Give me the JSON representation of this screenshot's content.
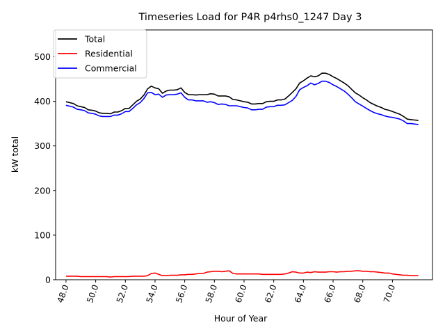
{
  "chart_data": {
    "type": "line",
    "title": "Timeseries Load for P4R p4rhs0_1247  Day 3",
    "xlabel": "Hour of Year",
    "ylabel": "kW total",
    "xlim": [
      47.3,
      72.7
    ],
    "ylim": [
      0,
      560
    ],
    "xticks": [
      48,
      50,
      52,
      54,
      56,
      58,
      60,
      62,
      64,
      66,
      68,
      70
    ],
    "xtick_labels": [
      "48.0",
      "50.0",
      "52.0",
      "54.0",
      "56.0",
      "58.0",
      "60.0",
      "62.0",
      "64.0",
      "66.0",
      "68.0",
      "70.0"
    ],
    "yticks": [
      0,
      100,
      200,
      300,
      400,
      500
    ],
    "ytick_labels": [
      "0",
      "100",
      "200",
      "300",
      "400",
      "500"
    ],
    "grid": false,
    "legend_position": "top-left",
    "x": [
      48.0,
      48.25,
      48.5,
      48.75,
      49.0,
      49.25,
      49.5,
      49.75,
      50.0,
      50.25,
      50.5,
      50.75,
      51.0,
      51.25,
      51.5,
      51.75,
      52.0,
      52.25,
      52.5,
      52.75,
      53.0,
      53.25,
      53.5,
      53.75,
      54.0,
      54.25,
      54.5,
      54.75,
      55.0,
      55.25,
      55.5,
      55.75,
      56.0,
      56.25,
      56.5,
      56.75,
      57.0,
      57.25,
      57.5,
      57.75,
      58.0,
      58.25,
      58.5,
      58.75,
      59.0,
      59.25,
      59.5,
      59.75,
      60.0,
      60.25,
      60.5,
      60.75,
      61.0,
      61.25,
      61.5,
      61.75,
      62.0,
      62.25,
      62.5,
      62.75,
      63.0,
      63.25,
      63.5,
      63.75,
      64.0,
      64.25,
      64.5,
      64.75,
      65.0,
      65.25,
      65.5,
      65.75,
      66.0,
      66.25,
      66.5,
      66.75,
      67.0,
      67.25,
      67.5,
      67.75,
      68.0,
      68.25,
      68.5,
      68.75,
      69.0,
      69.25,
      69.5,
      69.75,
      70.0,
      70.25,
      70.5,
      70.75,
      71.0,
      71.25,
      71.5,
      71.75
    ],
    "series": [
      {
        "name": "Total",
        "color": "#000000",
        "values": [
          399,
          397,
          395,
          390,
          388,
          386,
          381,
          380,
          378,
          374,
          373,
          373,
          372,
          376,
          376,
          379,
          384,
          384,
          392,
          400,
          405,
          414,
          428,
          434,
          430,
          428,
          418,
          423,
          425,
          425,
          426,
          430,
          420,
          415,
          415,
          414,
          415,
          415,
          415,
          417,
          416,
          412,
          412,
          412,
          410,
          404,
          403,
          401,
          399,
          398,
          394,
          394,
          395,
          395,
          399,
          400,
          400,
          403,
          403,
          405,
          412,
          420,
          428,
          441,
          446,
          452,
          457,
          455,
          457,
          463,
          463,
          460,
          455,
          451,
          446,
          441,
          435,
          427,
          419,
          414,
          408,
          403,
          397,
          393,
          389,
          386,
          382,
          380,
          377,
          374,
          371,
          366,
          360,
          359,
          358,
          357
        ]
      },
      {
        "name": "Residential",
        "color": "#ff0000",
        "values": [
          8,
          8,
          8,
          8,
          7,
          7,
          7,
          7,
          7,
          7,
          7,
          7,
          6,
          7,
          7,
          7,
          7,
          7,
          8,
          8,
          8,
          8,
          9,
          14,
          15,
          12,
          9,
          9,
          10,
          10,
          10,
          11,
          11,
          12,
          12,
          13,
          14,
          14,
          17,
          18,
          19,
          19,
          18,
          19,
          20,
          14,
          13,
          13,
          13,
          13,
          13,
          13,
          13,
          12,
          12,
          12,
          12,
          12,
          12,
          13,
          15,
          18,
          17,
          15,
          15,
          17,
          16,
          18,
          17,
          17,
          17,
          18,
          18,
          17,
          18,
          18,
          19,
          19,
          20,
          20,
          19,
          19,
          18,
          18,
          17,
          16,
          15,
          15,
          13,
          12,
          11,
          10,
          10,
          9,
          9,
          9
        ]
      },
      {
        "name": "Commercial",
        "color": "#0000ff",
        "values": [
          391,
          389,
          387,
          382,
          381,
          379,
          374,
          373,
          371,
          367,
          366,
          366,
          366,
          369,
          369,
          372,
          377,
          377,
          384,
          392,
          397,
          406,
          419,
          420,
          415,
          416,
          409,
          414,
          415,
          415,
          416,
          419,
          409,
          403,
          403,
          401,
          401,
          401,
          398,
          399,
          397,
          393,
          394,
          393,
          390,
          390,
          390,
          388,
          386,
          385,
          381,
          381,
          382,
          382,
          387,
          388,
          388,
          391,
          391,
          392,
          397,
          402,
          411,
          426,
          431,
          435,
          441,
          437,
          440,
          445,
          445,
          442,
          437,
          433,
          428,
          423,
          416,
          408,
          399,
          394,
          389,
          384,
          379,
          375,
          372,
          370,
          367,
          365,
          364,
          362,
          360,
          356,
          350,
          350,
          349,
          348
        ]
      }
    ]
  }
}
